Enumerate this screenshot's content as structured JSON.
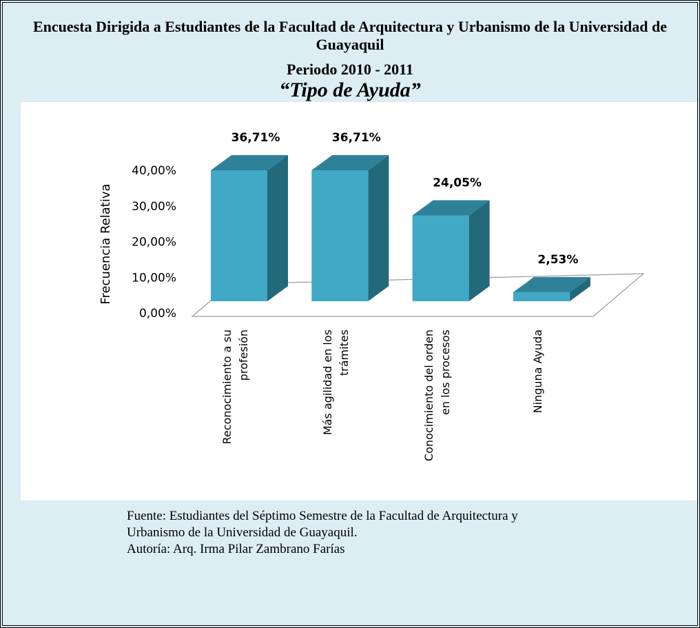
{
  "header": {
    "title": "Encuesta Dirigida a Estudiantes de la Facultad de Arquitectura y Urbanismo de la Universidad de Guayaquil",
    "period": "Periodo 2010 - 2011"
  },
  "chart_data": {
    "type": "bar",
    "title": "“Tipo de Ayuda”",
    "y_label": "Frecuencia Relativa",
    "categories": [
      "Reconocimiento a su profesión",
      "Más agilidad en los trámites",
      "Conocimiento del orden en los procesos",
      "Ninguna Ayuda"
    ],
    "values": [
      36.71,
      36.71,
      24.05,
      2.53
    ],
    "value_labels": [
      "36,71%",
      "36,71%",
      "24,05%",
      "2,53%"
    ],
    "color": "#41a9c6",
    "ylim": [
      0,
      40
    ],
    "yticks": [
      {
        "value": 0,
        "label": "0,00%"
      },
      {
        "value": 10,
        "label": "10,00%"
      },
      {
        "value": 20,
        "label": "20,00%"
      },
      {
        "value": 30,
        "label": "30,00%"
      },
      {
        "value": 40,
        "label": "40,00%"
      }
    ],
    "grid": false
  },
  "footer": {
    "source": "Fuente: Estudiantes del Séptimo Semestre de la Facultad de Arquitectura y Urbanismo de la Universidad de Guayaquil.",
    "author": "Autoría: Arq. Irma Pilar Zambrano Farías"
  }
}
